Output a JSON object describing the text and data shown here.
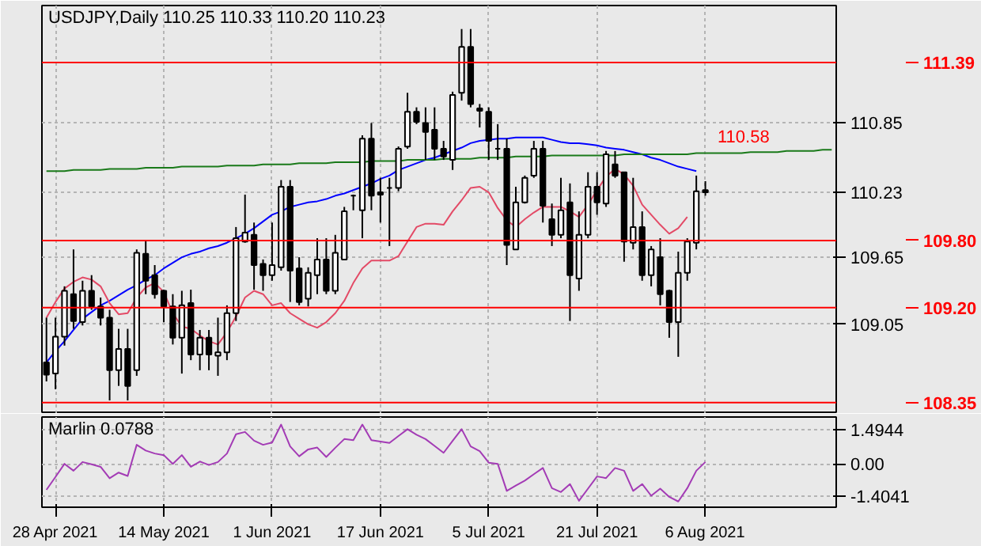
{
  "chart_data": [
    {
      "type": "candlestick",
      "title": "USDJPY,Daily 110.25 110.33 110.20 110.23",
      "categories": [
        null,
        null,
        null,
        null,
        null,
        null,
        null,
        null,
        null,
        null,
        null,
        null,
        null,
        null,
        null,
        null,
        null,
        null,
        null,
        null,
        null,
        null,
        null,
        null,
        null,
        null,
        null,
        null,
        null,
        null,
        null,
        null,
        null,
        null,
        null,
        null,
        null,
        null,
        null,
        null,
        null,
        null,
        null,
        null,
        null,
        null,
        null,
        null,
        null,
        null,
        null,
        null,
        null,
        null,
        null,
        null,
        null,
        null,
        null,
        null,
        null,
        null,
        null,
        null,
        null,
        null,
        null,
        null,
        null,
        null,
        null,
        null,
        null,
        null,
        null,
        null,
        null,
        null,
        null,
        null,
        null,
        null,
        null,
        null,
        null,
        null,
        null,
        null
      ],
      "ohlc": [
        [
          108.71,
          109.11,
          108.54,
          108.6
        ],
        [
          108.61,
          109.11,
          108.47,
          108.94
        ],
        [
          108.94,
          109.39,
          108.86,
          109.35
        ],
        [
          109.32,
          109.72,
          109.01,
          109.08
        ],
        [
          109.07,
          109.44,
          109.04,
          109.35
        ],
        [
          109.35,
          109.49,
          109.18,
          109.21
        ],
        [
          109.21,
          109.29,
          109.04,
          109.11
        ],
        [
          109.11,
          109.18,
          108.37,
          108.64
        ],
        [
          108.64,
          109.01,
          108.5,
          108.83
        ],
        [
          108.83,
          109.01,
          108.37,
          108.5
        ],
        [
          108.64,
          109.72,
          108.59,
          109.69
        ],
        [
          109.68,
          109.8,
          109.32,
          109.44
        ],
        [
          109.49,
          109.58,
          109.28,
          109.32
        ],
        [
          109.35,
          109.36,
          109.07,
          109.21
        ],
        [
          109.21,
          109.32,
          108.87,
          108.93
        ],
        [
          108.93,
          109.35,
          108.61,
          109.22
        ],
        [
          109.24,
          109.36,
          108.73,
          108.78
        ],
        [
          108.78,
          109.0,
          108.64,
          108.93
        ],
        [
          108.93,
          109.0,
          108.64,
          108.78
        ],
        [
          108.77,
          109.11,
          108.59,
          108.8
        ],
        [
          108.8,
          109.22,
          108.73,
          109.15
        ],
        [
          109.15,
          109.92,
          109.08,
          109.82
        ],
        [
          109.79,
          110.21,
          109.78,
          109.87
        ],
        [
          109.85,
          109.96,
          109.36,
          109.58
        ],
        [
          109.59,
          109.63,
          109.35,
          109.49
        ],
        [
          109.49,
          109.96,
          109.44,
          109.58
        ],
        [
          109.56,
          110.34,
          109.53,
          110.28
        ],
        [
          110.28,
          110.34,
          109.25,
          109.53
        ],
        [
          109.55,
          109.65,
          109.22,
          109.25
        ],
        [
          109.28,
          109.56,
          109.21,
          109.51
        ],
        [
          109.49,
          109.82,
          109.32,
          109.63
        ],
        [
          109.63,
          109.82,
          109.32,
          109.35
        ],
        [
          109.35,
          109.85,
          109.32,
          109.69
        ],
        [
          109.63,
          110.1,
          109.63,
          110.06
        ],
        [
          110.2,
          110.21,
          110.07,
          110.2
        ],
        [
          110.07,
          110.74,
          109.82,
          110.71
        ],
        [
          110.71,
          110.85,
          110.07,
          110.2
        ],
        [
          110.23,
          110.36,
          109.96,
          110.21
        ],
        [
          110.27,
          110.36,
          109.75,
          110.27
        ],
        [
          110.27,
          110.64,
          110.24,
          110.62
        ],
        [
          110.64,
          111.12,
          110.62,
          110.95
        ],
        [
          110.95,
          110.99,
          110.84,
          110.86
        ],
        [
          110.85,
          110.99,
          110.52,
          110.77
        ],
        [
          110.79,
          110.99,
          110.52,
          110.62
        ],
        [
          110.62,
          110.69,
          110.52,
          110.55
        ],
        [
          110.52,
          111.13,
          110.43,
          111.1
        ],
        [
          111.12,
          111.69,
          111.05,
          111.53
        ],
        [
          111.53,
          111.69,
          110.99,
          111.02
        ],
        [
          110.98,
          111.02,
          110.81,
          110.96
        ],
        [
          110.95,
          110.99,
          110.52,
          110.69
        ],
        [
          110.62,
          110.84,
          110.52,
          110.62
        ],
        [
          110.62,
          110.71,
          109.58,
          109.76
        ],
        [
          109.72,
          110.28,
          109.72,
          110.14
        ],
        [
          110.14,
          110.38,
          110.13,
          110.36
        ],
        [
          110.38,
          110.69,
          110.36,
          110.62
        ],
        [
          110.62,
          110.69,
          109.96,
          110.11
        ],
        [
          109.99,
          110.13,
          109.75,
          109.85
        ],
        [
          109.85,
          110.36,
          109.82,
          110.07
        ],
        [
          110.14,
          110.31,
          109.08,
          109.49
        ],
        [
          109.46,
          110.06,
          109.35,
          109.85
        ],
        [
          109.85,
          110.41,
          109.82,
          110.28
        ],
        [
          110.28,
          110.41,
          110.03,
          110.14
        ],
        [
          110.13,
          110.6,
          110.1,
          110.57
        ],
        [
          110.48,
          110.6,
          110.36,
          110.38
        ],
        [
          110.41,
          110.41,
          109.61,
          109.79
        ],
        [
          109.78,
          110.36,
          109.72,
          109.92
        ],
        [
          109.92,
          110.06,
          109.44,
          109.49
        ],
        [
          109.49,
          109.75,
          109.39,
          109.72
        ],
        [
          109.65,
          109.82,
          109.22,
          109.32
        ],
        [
          109.35,
          109.36,
          108.93,
          109.07
        ],
        [
          109.07,
          109.7,
          108.76,
          109.51
        ],
        [
          109.51,
          109.82,
          109.44,
          109.79
        ],
        [
          109.78,
          110.38,
          109.72,
          110.24
        ],
        [
          110.25,
          110.33,
          110.2,
          110.23
        ],
        null,
        null,
        null,
        null,
        null,
        null,
        null,
        null,
        null,
        null,
        null,
        null,
        null,
        null
      ],
      "series": [
        {
          "type": "line",
          "color": "#0000ff",
          "values": [
            108.71,
            108.81,
            108.9,
            109.0,
            109.1,
            109.16,
            109.22,
            109.26,
            109.31,
            109.36,
            109.4,
            109.45,
            109.49,
            109.55,
            109.6,
            109.65,
            109.68,
            109.7,
            109.73,
            109.75,
            109.78,
            109.82,
            109.86,
            109.91,
            109.97,
            110.03,
            110.06,
            110.1,
            110.12,
            110.14,
            110.15,
            110.17,
            110.2,
            110.22,
            110.25,
            110.28,
            110.31,
            110.35,
            110.38,
            110.43,
            110.46,
            110.49,
            110.52,
            110.54,
            110.57,
            110.6,
            110.63,
            110.67,
            110.69,
            110.7,
            110.71,
            110.71,
            110.72,
            110.72,
            110.72,
            110.72,
            110.7,
            110.68,
            110.67,
            110.67,
            110.66,
            110.65,
            110.63,
            110.62,
            110.61,
            110.59,
            110.57,
            110.54,
            110.52,
            110.49,
            110.46,
            110.44,
            110.42,
            null,
            null,
            null,
            null,
            null,
            null,
            null,
            null,
            null,
            null,
            null,
            null,
            null,
            null,
            null
          ]
        },
        {
          "type": "line",
          "color": "#e34a66",
          "values": [
            109.11,
            109.25,
            109.37,
            109.43,
            109.47,
            109.45,
            109.39,
            109.24,
            109.14,
            109.15,
            109.29,
            109.38,
            109.42,
            109.34,
            109.15,
            109.03,
            109.01,
            108.95,
            108.9,
            108.87,
            108.98,
            109.12,
            109.29,
            109.35,
            109.32,
            109.22,
            109.24,
            109.15,
            109.1,
            109.05,
            109.02,
            109.07,
            109.15,
            109.26,
            109.42,
            109.55,
            109.62,
            109.62,
            109.62,
            109.66,
            109.79,
            109.92,
            109.95,
            109.95,
            109.94,
            110.06,
            110.16,
            110.27,
            110.28,
            110.23,
            110.09,
            109.98,
            109.92,
            109.99,
            110.05,
            110.1,
            110.1,
            110.1,
            110.06,
            110.01,
            110.12,
            110.25,
            110.37,
            110.44,
            110.39,
            110.29,
            110.12,
            110.03,
            109.94,
            109.86,
            109.91,
            110.01,
            null,
            null,
            null,
            null,
            null,
            null,
            null,
            null,
            null,
            null,
            null,
            null,
            null,
            null,
            null,
            null
          ]
        },
        {
          "type": "line",
          "color": "#1a7a1a",
          "values": [
            110.42,
            110.42,
            110.42,
            110.43,
            110.43,
            110.43,
            110.43,
            110.44,
            110.44,
            110.44,
            110.44,
            110.45,
            110.45,
            110.45,
            110.45,
            110.46,
            110.46,
            110.46,
            110.46,
            110.46,
            110.47,
            110.47,
            110.47,
            110.47,
            110.48,
            110.48,
            110.48,
            110.48,
            110.49,
            110.49,
            110.49,
            110.49,
            110.5,
            110.5,
            110.5,
            110.5,
            110.51,
            110.51,
            110.51,
            110.51,
            110.52,
            110.52,
            110.52,
            110.52,
            110.53,
            110.53,
            110.53,
            110.53,
            110.54,
            110.54,
            110.54,
            110.54,
            110.55,
            110.55,
            110.55,
            110.55,
            110.56,
            110.56,
            110.56,
            110.56,
            110.56,
            110.56,
            110.56,
            110.56,
            110.57,
            110.57,
            110.57,
            110.57,
            110.57,
            110.57,
            110.57,
            110.57,
            110.58,
            110.58,
            110.58,
            110.58,
            110.58,
            110.58,
            110.59,
            110.59,
            110.59,
            110.59,
            110.6,
            110.6,
            110.6,
            110.6,
            110.61,
            110.61
          ]
        }
      ],
      "ref_lines": [
        {
          "axis": "y",
          "value": 111.39,
          "label": "111.39",
          "color": "#ff0000"
        },
        {
          "axis": "y",
          "value": 109.8,
          "label": "109.80",
          "color": "#ff0000"
        },
        {
          "axis": "y",
          "value": 109.2,
          "label": "109.20",
          "color": "#ff0000"
        },
        {
          "axis": "y",
          "value": 108.35,
          "label": "108.35",
          "color": "#ff0000"
        }
      ],
      "annotations": [
        {
          "text": "110.58",
          "y": 110.58
        }
      ],
      "ylim": [
        108.25,
        111.9
      ],
      "yticks": [
        109.05,
        109.65,
        110.23,
        110.85
      ],
      "grid": true,
      "tick_labels": "y"
    },
    {
      "type": "line",
      "title": "Marlin 0.0788",
      "categories": [
        null,
        "28 Apr 2021",
        null,
        null,
        null,
        null,
        null,
        null,
        null,
        null,
        null,
        null,
        null,
        "14 May 2021",
        null,
        null,
        null,
        null,
        null,
        null,
        null,
        null,
        null,
        null,
        null,
        "1 Jun 2021",
        null,
        null,
        null,
        null,
        null,
        null,
        null,
        null,
        null,
        null,
        null,
        "17 Jun 2021",
        null,
        null,
        null,
        null,
        null,
        null,
        null,
        null,
        null,
        null,
        null,
        "5 Jul 2021",
        null,
        null,
        null,
        null,
        null,
        null,
        null,
        null,
        null,
        null,
        null,
        "21 Jul 2021",
        null,
        null,
        null,
        null,
        null,
        null,
        null,
        null,
        null,
        null,
        null,
        "6 Aug 2021",
        null,
        null,
        null,
        null,
        null,
        null,
        null,
        null,
        null,
        null,
        null,
        null,
        null,
        null
      ],
      "series": [
        {
          "color": "#a33bb5",
          "values": [
            -1.13,
            -0.57,
            0.0,
            -0.3,
            0.08,
            -0.02,
            -0.13,
            -0.63,
            -0.38,
            -0.53,
            0.83,
            0.58,
            0.45,
            0.38,
            0.0,
            0.38,
            -0.13,
            0.1,
            -0.05,
            0.08,
            0.45,
            1.29,
            1.39,
            1.01,
            0.83,
            0.93,
            1.71,
            0.76,
            0.33,
            0.63,
            0.71,
            0.3,
            0.7,
            1.08,
            1.03,
            1.71,
            1.03,
            0.97,
            0.91,
            1.21,
            1.51,
            1.27,
            1.08,
            0.78,
            0.48,
            1.0,
            1.51,
            0.76,
            0.55,
            0.05,
            0.0,
            -1.18,
            -0.95,
            -0.73,
            -0.45,
            -0.18,
            -1.06,
            -1.23,
            -0.88,
            -1.61,
            -1.08,
            -0.55,
            -0.62,
            -0.18,
            -0.3,
            -1.18,
            -0.88,
            -1.39,
            -1.08,
            -1.44,
            -1.64,
            -1.06,
            -0.3,
            0.0788,
            null,
            null,
            null,
            null,
            null,
            null,
            null,
            null,
            null,
            null,
            null,
            null,
            null,
            null
          ]
        }
      ],
      "ylim": [
        -1.89,
        2.04
      ],
      "yticks": [
        1.4944,
        {
          "value": 0,
          "label": "0.00"
        },
        -1.4041
      ],
      "grid": true
    }
  ]
}
